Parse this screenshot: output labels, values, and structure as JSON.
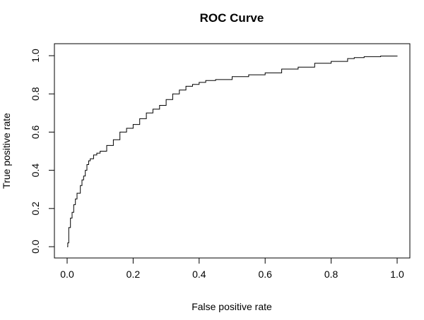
{
  "chart_data": {
    "type": "line",
    "title": "ROC Curve",
    "xlabel": "False positive rate",
    "ylabel": "True positive rate",
    "xlim": [
      0,
      1
    ],
    "ylim": [
      0,
      1
    ],
    "xticks": [
      "0.0",
      "0.2",
      "0.4",
      "0.6",
      "0.8",
      "1.0"
    ],
    "yticks": [
      "0.0",
      "0.2",
      "0.4",
      "0.6",
      "0.8",
      "1.0"
    ],
    "grid": false,
    "legend": "none",
    "line_color": "#000000",
    "series": [
      {
        "x": [
          0,
          0.002,
          0.005,
          0.01,
          0.015,
          0.02,
          0.025,
          0.03,
          0.04,
          0.045,
          0.05,
          0.055,
          0.06,
          0.065,
          0.07,
          0.08,
          0.09,
          0.1,
          0.12,
          0.14,
          0.16,
          0.18,
          0.2,
          0.22,
          0.24,
          0.26,
          0.28,
          0.3,
          0.32,
          0.34,
          0.36,
          0.38,
          0.4,
          0.42,
          0.45,
          0.5,
          0.55,
          0.6,
          0.65,
          0.7,
          0.75,
          0.8,
          0.85,
          0.87,
          0.9,
          0.95,
          1.0
        ],
        "y": [
          0,
          0.02,
          0.1,
          0.15,
          0.18,
          0.22,
          0.25,
          0.28,
          0.32,
          0.35,
          0.37,
          0.4,
          0.43,
          0.45,
          0.46,
          0.48,
          0.49,
          0.5,
          0.53,
          0.56,
          0.6,
          0.62,
          0.64,
          0.67,
          0.7,
          0.72,
          0.74,
          0.77,
          0.8,
          0.82,
          0.84,
          0.85,
          0.86,
          0.87,
          0.875,
          0.89,
          0.9,
          0.91,
          0.93,
          0.94,
          0.96,
          0.97,
          0.985,
          0.99,
          0.995,
          0.998,
          1.0
        ]
      }
    ]
  }
}
